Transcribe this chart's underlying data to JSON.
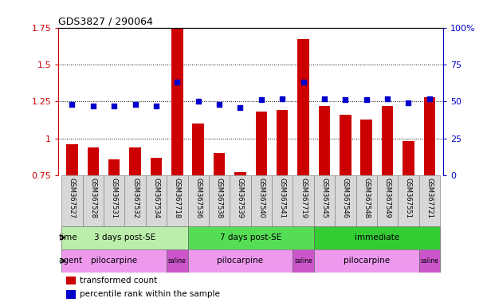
{
  "title": "GDS3827 / 290064",
  "samples": [
    "GSM367527",
    "GSM367528",
    "GSM367531",
    "GSM367532",
    "GSM367534",
    "GSM367718",
    "GSM367536",
    "GSM367538",
    "GSM367539",
    "GSM367540",
    "GSM367541",
    "GSM367719",
    "GSM367545",
    "GSM367546",
    "GSM367548",
    "GSM367549",
    "GSM367551",
    "GSM367721"
  ],
  "transformed_count": [
    0.96,
    0.94,
    0.86,
    0.94,
    0.87,
    1.75,
    1.1,
    0.9,
    0.77,
    1.18,
    1.19,
    1.67,
    1.22,
    1.16,
    1.13,
    1.22,
    0.98,
    1.28
  ],
  "percentile_rank": [
    48,
    47,
    47,
    48,
    47,
    63,
    50,
    48,
    46,
    51,
    52,
    63,
    52,
    51,
    51,
    52,
    49,
    52
  ],
  "bar_color": "#cc0000",
  "dot_color": "#0000cc",
  "ymin": 0.75,
  "ymax": 1.75,
  "yticks_left": [
    0.75,
    1.0,
    1.25,
    1.5,
    1.75
  ],
  "ytick_labels_left": [
    "0.75",
    "1",
    "1.25",
    "1.5",
    "1.75"
  ],
  "pct_min": 0,
  "pct_max": 100,
  "yticks_right_pct": [
    0,
    25,
    50,
    75,
    100
  ],
  "ytick_labels_right": [
    "0",
    "25",
    "50",
    "75",
    "100%"
  ],
  "time_groups": [
    {
      "label": "3 days post-SE",
      "start": 0,
      "end": 5,
      "color": "#bbeeaa"
    },
    {
      "label": "7 days post-SE",
      "start": 6,
      "end": 11,
      "color": "#55dd55"
    },
    {
      "label": "immediate",
      "start": 12,
      "end": 17,
      "color": "#33cc33"
    }
  ],
  "agent_groups": [
    {
      "label": "pilocarpine",
      "start": 0,
      "end": 4,
      "color": "#ee99ee"
    },
    {
      "label": "saline",
      "start": 5,
      "end": 5,
      "color": "#cc55cc"
    },
    {
      "label": "pilocarpine",
      "start": 6,
      "end": 10,
      "color": "#ee99ee"
    },
    {
      "label": "saline",
      "start": 11,
      "end": 11,
      "color": "#cc55cc"
    },
    {
      "label": "pilocarpine",
      "start": 12,
      "end": 16,
      "color": "#ee99ee"
    },
    {
      "label": "saline",
      "start": 17,
      "end": 17,
      "color": "#cc55cc"
    }
  ],
  "legend_bar_label": "transformed count",
  "legend_dot_label": "percentile rank within the sample",
  "bar_width": 0.55
}
